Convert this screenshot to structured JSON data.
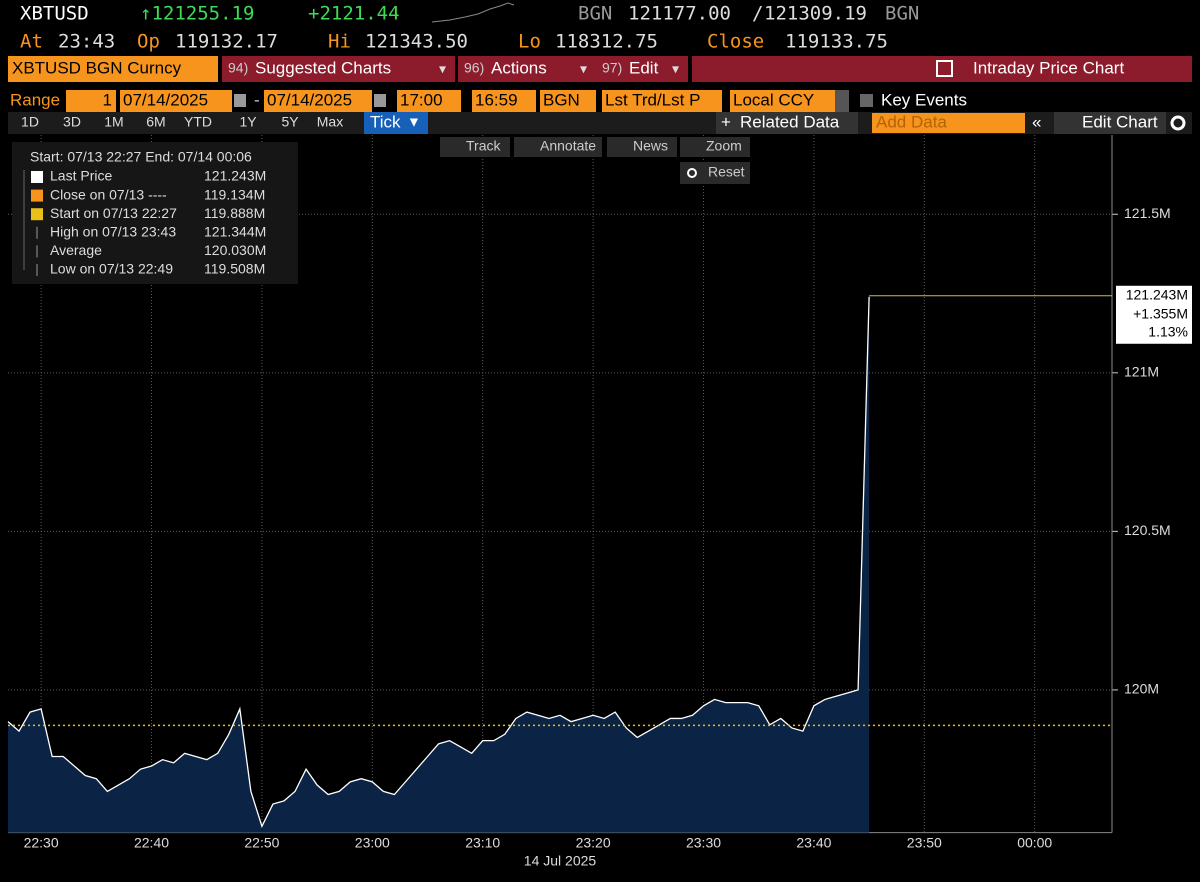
{
  "header": {
    "ticker": "XBTUSD",
    "last": "↑121255.19",
    "change": "+2121.44",
    "bid_src": "BGN",
    "bid": "121177.00",
    "ask": "121309.19",
    "ask_src": "BGN",
    "quote": [
      {
        "label": "At",
        "value": "23:43"
      },
      {
        "label": "Op",
        "value": "119132.17"
      },
      {
        "label": "Hi",
        "value": "121343.50"
      },
      {
        "label": "Lo",
        "value": "118312.75"
      },
      {
        "label": "Close",
        "value": "119133.75"
      }
    ]
  },
  "toolbar": {
    "security": "XBTUSD BGN Curncy",
    "menus": [
      {
        "num": "94)",
        "label": "Suggested Charts"
      },
      {
        "num": "96)",
        "label": "Actions"
      },
      {
        "num": "97)",
        "label": "Edit"
      }
    ],
    "title": "Intraday Price Chart"
  },
  "range": {
    "label": "Range",
    "period": "1",
    "start_date": "07/14/2025",
    "end_date": "07/14/2025",
    "start_time": "17:00",
    "end_time": "16:59",
    "source": "BGN",
    "field": "Lst Trd/Lst P",
    "currency": "Local CCY",
    "key_events": "Key Events"
  },
  "periods": [
    "1D",
    "3D",
    "1M",
    "6M",
    "YTD",
    "1Y",
    "5Y",
    "Max"
  ],
  "selected_period": "Tick",
  "related_data": "Related Data",
  "add_data": "Add Data",
  "edit_chart": "Edit Chart",
  "chart_tools": [
    "Track",
    "Annotate",
    "News",
    "Zoom"
  ],
  "reset": "Reset",
  "chart_data": {
    "type": "line",
    "xlabel": "14 Jul 2025",
    "x": [
      "22:27",
      "22:28",
      "22:29",
      "22:30",
      "22:31",
      "22:32",
      "22:33",
      "22:34",
      "22:35",
      "22:36",
      "22:37",
      "22:38",
      "22:39",
      "22:40",
      "22:41",
      "22:42",
      "22:43",
      "22:44",
      "22:45",
      "22:46",
      "22:47",
      "22:48",
      "22:49",
      "22:50",
      "22:51",
      "22:52",
      "22:53",
      "22:54",
      "22:55",
      "22:56",
      "22:57",
      "22:58",
      "22:59",
      "23:00",
      "23:01",
      "23:02",
      "23:03",
      "23:04",
      "23:05",
      "23:06",
      "23:07",
      "23:08",
      "23:09",
      "23:10",
      "23:11",
      "23:12",
      "23:13",
      "23:14",
      "23:15",
      "23:16",
      "23:17",
      "23:18",
      "23:19",
      "23:20",
      "23:21",
      "23:22",
      "23:23",
      "23:24",
      "23:25",
      "23:26",
      "23:27",
      "23:28",
      "23:29",
      "23:30",
      "23:31",
      "23:32",
      "23:33",
      "23:34",
      "23:35",
      "23:36",
      "23:37",
      "23:38",
      "23:39",
      "23:40",
      "23:41",
      "23:42",
      "23:43",
      "23:44",
      "23:45"
    ],
    "series": [
      {
        "name": "Last Price",
        "color": "#ffffff",
        "fill": "#0b2446",
        "values": [
          119.9,
          119.87,
          119.93,
          119.94,
          119.79,
          119.79,
          119.76,
          119.73,
          119.72,
          119.68,
          119.7,
          119.72,
          119.75,
          119.76,
          119.78,
          119.77,
          119.8,
          119.79,
          119.78,
          119.8,
          119.86,
          119.94,
          119.68,
          119.57,
          119.64,
          119.65,
          119.68,
          119.75,
          119.7,
          119.67,
          119.68,
          119.71,
          119.72,
          119.71,
          119.68,
          119.67,
          119.71,
          119.75,
          119.79,
          119.83,
          119.84,
          119.82,
          119.8,
          119.84,
          119.84,
          119.86,
          119.91,
          119.93,
          119.92,
          119.91,
          119.92,
          119.9,
          119.91,
          119.92,
          119.91,
          119.93,
          119.88,
          119.85,
          119.87,
          119.89,
          119.91,
          119.91,
          119.92,
          119.95,
          119.97,
          119.96,
          119.96,
          119.96,
          119.95,
          119.89,
          119.91,
          119.88,
          119.87,
          119.95,
          119.97,
          119.98,
          119.99,
          120.0,
          121.24
        ]
      }
    ],
    "xlim": [
      "22:27",
      "00:07"
    ],
    "xticks": [
      "22:30",
      "22:40",
      "22:50",
      "23:00",
      "23:10",
      "23:20",
      "23:30",
      "23:40",
      "23:50",
      "00:00"
    ],
    "ylim": [
      119.55,
      121.75
    ],
    "yticks": [
      {
        "value": 120,
        "label": "120M"
      },
      {
        "value": 120.5,
        "label": "120.5M"
      },
      {
        "value": 121,
        "label": "121M"
      },
      {
        "value": 121.5,
        "label": "121.5M"
      }
    ],
    "grid": true,
    "last_marker": {
      "value": 121.243,
      "label": "121.243M",
      "change": "+1.355M",
      "change_pct": "1.13%",
      "color": "#d9b84a"
    },
    "legend_title": "Start: 07/13 22:27  End: 07/14 00:06",
    "legend": [
      {
        "name": "Last Price",
        "value": 121.243,
        "label": "121.243M",
        "color": "#ffffff"
      },
      {
        "name": "Close on 07/13 ----",
        "value": 119.134,
        "label": "119.134M",
        "color": "#f7941d"
      },
      {
        "name": "Start on 07/13 22:27",
        "value": 119.888,
        "label": "119.888M",
        "color": "#e8c01a"
      },
      {
        "name": "High on 07/13 23:43",
        "value": 121.344,
        "label": "121.344M"
      },
      {
        "name": "Average",
        "value": 120.03,
        "label": "120.030M"
      },
      {
        "name": "Low on 07/13 22:49",
        "value": 119.508,
        "label": "119.508M"
      }
    ]
  }
}
